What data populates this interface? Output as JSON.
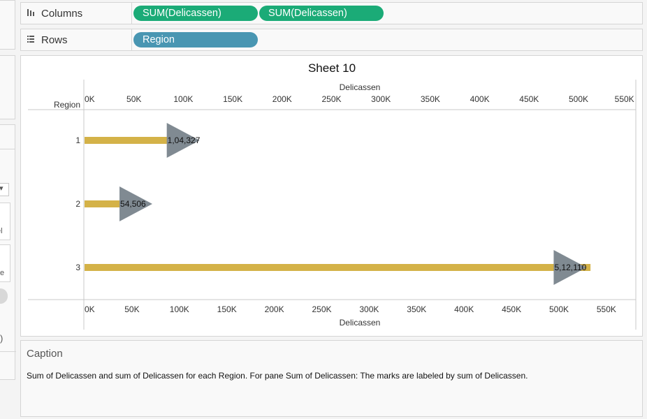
{
  "left_panel": {
    "dropdown_arrow": "▾",
    "text_frag_1": "el",
    "text_frag_2": "e",
    "text_frag_3": ")"
  },
  "shelves": {
    "columns": {
      "label": "Columns",
      "icon": "columns-icon",
      "pills": [
        "SUM(Delicassen)",
        "SUM(Delicassen)"
      ],
      "color": "#1bab77"
    },
    "rows": {
      "label": "Rows",
      "icon": "rows-icon",
      "pills": [
        "Region"
      ],
      "color": "#4996b2"
    }
  },
  "sheet": {
    "title": "Sheet 10",
    "row_header": "Region"
  },
  "chart_data": {
    "type": "bar",
    "orientation": "horizontal",
    "categories": [
      "1",
      "2",
      "3"
    ],
    "series": [
      {
        "values": [
          104327,
          54506,
          512110
        ],
        "mark": "bar",
        "color": "#d4b248"
      },
      {
        "values": [
          104327,
          54506,
          512110
        ],
        "mark": "triangle",
        "color": "#808a92"
      }
    ],
    "data_labels": [
      "1,04,327",
      "54,506",
      "5,12,110"
    ],
    "top_axis": {
      "title": "Delicassen",
      "ticks": [
        "0K",
        "50K",
        "100K",
        "150K",
        "200K",
        "250K",
        "300K",
        "350K",
        "400K",
        "450K",
        "500K",
        "550K"
      ],
      "range": [
        0,
        558000
      ]
    },
    "bottom_axis": {
      "title": "Delicassen",
      "ticks": [
        "0K",
        "50K",
        "100K",
        "150K",
        "200K",
        "250K",
        "300K",
        "350K",
        "400K",
        "450K",
        "500K",
        "550K"
      ],
      "range": [
        0,
        581000
      ]
    },
    "grid": false
  },
  "caption": {
    "title": "Caption",
    "text": "Sum of Delicassen and sum of Delicassen for each Region.  For pane Sum of Delicassen:  The marks are labeled by sum of Delicassen."
  }
}
